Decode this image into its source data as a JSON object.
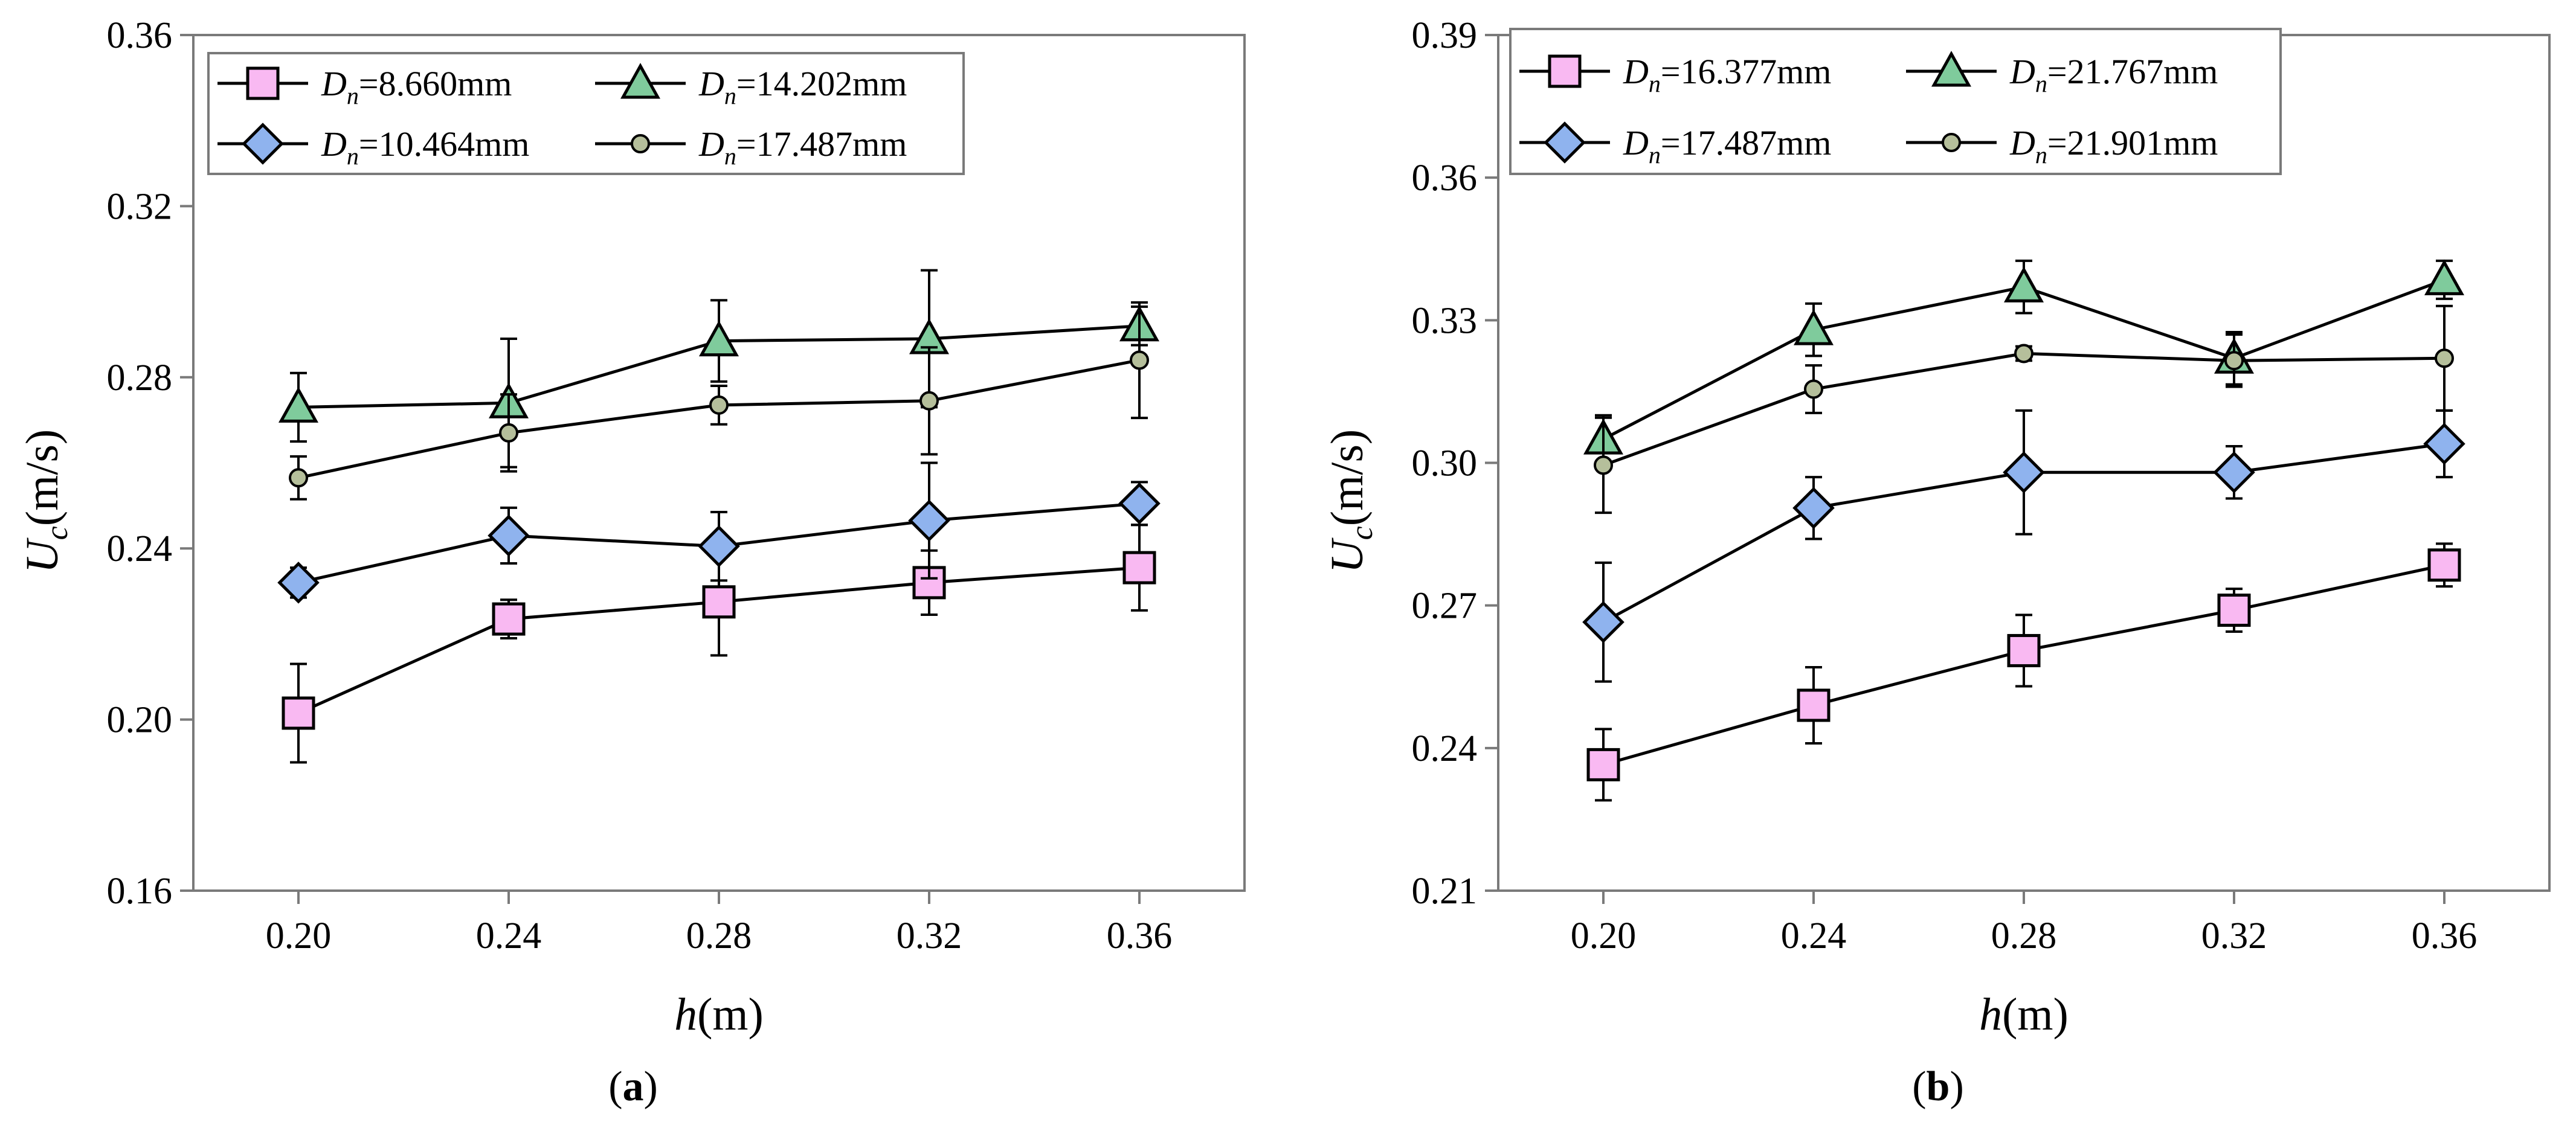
{
  "chart_data": [
    {
      "type": "line",
      "panel_label": {
        "open": "(",
        "letter": "a",
        "close": ")"
      },
      "xlabel": {
        "var": "h",
        "unit": "(m)"
      },
      "ylabel": {
        "var": "U",
        "sub": "c",
        "unit": "(m/s)"
      },
      "xlim": [
        0.18,
        0.38
      ],
      "ylim": [
        0.16,
        0.36
      ],
      "x_ticks": [
        0.2,
        0.24,
        0.28,
        0.32,
        0.36
      ],
      "x_tick_labels": [
        "0.20",
        "0.24",
        "0.28",
        "0.32",
        "0.36"
      ],
      "y_ticks": [
        0.16,
        0.2,
        0.24,
        0.28,
        0.32,
        0.36
      ],
      "y_tick_labels": [
        "0.16",
        "0.20",
        "0.24",
        "0.28",
        "0.32",
        "0.36"
      ],
      "legend_position": "top-left",
      "x": [
        0.2,
        0.24,
        0.28,
        0.32,
        0.36
      ],
      "series": [
        {
          "name": "Dn=8.660mm",
          "var": "D",
          "sub": "n",
          "value": "=8.660mm",
          "marker": "square",
          "color": "#F9B9F2",
          "values": [
            0.2015,
            0.2235,
            0.2275,
            0.232,
            0.2355
          ],
          "err": [
            0.0115,
            0.0045,
            0.0125,
            0.0075,
            0.01
          ]
        },
        {
          "name": "Dn=10.464mm",
          "var": "D",
          "sub": "n",
          "value": "=10.464mm",
          "marker": "diamond",
          "color": "#8FB3EE",
          "values": [
            0.232,
            0.243,
            0.2405,
            0.2465,
            0.2505
          ],
          "err": [
            0.0035,
            0.0065,
            0.008,
            0.0135,
            0.005
          ]
        },
        {
          "name": "Dn=14.202mm",
          "var": "D",
          "sub": "n",
          "value": "=14.202mm",
          "marker": "triangle",
          "color": "#7FCB9C",
          "values": [
            0.273,
            0.274,
            0.2885,
            0.289,
            0.292
          ],
          "err": [
            0.008,
            0.015,
            0.0095,
            0.016,
            0.0045
          ]
        },
        {
          "name": "Dn=17.487mm",
          "var": "D",
          "sub": "n",
          "value": "=17.487mm",
          "marker": "circle",
          "color": "#B5BF9B",
          "values": [
            0.2565,
            0.267,
            0.2735,
            0.2745,
            0.284
          ],
          "err": [
            0.005,
            0.009,
            0.0045,
            0.0125,
            0.0135
          ]
        }
      ]
    },
    {
      "type": "line",
      "panel_label": {
        "open": "(",
        "letter": "b",
        "close": ")"
      },
      "xlabel": {
        "var": "h",
        "unit": "(m)"
      },
      "ylabel": {
        "var": "U",
        "sub": "c",
        "unit": "(m/s)"
      },
      "xlim": [
        0.18,
        0.38
      ],
      "ylim": [
        0.21,
        0.39
      ],
      "x_ticks": [
        0.2,
        0.24,
        0.28,
        0.32,
        0.36
      ],
      "x_tick_labels": [
        "0.20",
        "0.24",
        "0.28",
        "0.32",
        "0.36"
      ],
      "y_ticks": [
        0.21,
        0.24,
        0.27,
        0.3,
        0.33,
        0.36,
        0.39
      ],
      "y_tick_labels": [
        "0.21",
        "0.24",
        "0.27",
        "0.30",
        "0.33",
        "0.36",
        "0.39"
      ],
      "legend_position": "top-left",
      "x": [
        0.2,
        0.24,
        0.28,
        0.32,
        0.36
      ],
      "series": [
        {
          "name": "Dn=16.377mm",
          "var": "D",
          "sub": "n",
          "value": "=16.377mm",
          "marker": "square",
          "color": "#F9B9F2",
          "values": [
            0.2365,
            0.249,
            0.2605,
            0.269,
            0.2785
          ],
          "err": [
            0.0075,
            0.008,
            0.0075,
            0.0045,
            0.0045
          ]
        },
        {
          "name": "Dn=17.487mm",
          "var": "D",
          "sub": "n",
          "value": "=17.487mm",
          "marker": "diamond",
          "color": "#8FB3EE",
          "values": [
            0.2665,
            0.2905,
            0.298,
            0.298,
            0.304
          ],
          "err": [
            0.0125,
            0.0065,
            0.013,
            0.0055,
            0.007
          ]
        },
        {
          "name": "Dn=21.767mm",
          "var": "D",
          "sub": "n",
          "value": "=21.767mm",
          "marker": "triangle",
          "color": "#7FCB9C",
          "values": [
            0.305,
            0.328,
            0.337,
            0.322,
            0.3385
          ],
          "err": [
            0.005,
            0.0055,
            0.0055,
            0.0055,
            0.004
          ]
        },
        {
          "name": "Dn=21.901mm",
          "var": "D",
          "sub": "n",
          "value": "=21.901mm",
          "marker": "circle",
          "color": "#B5BF9B",
          "values": [
            0.2995,
            0.3155,
            0.323,
            0.3215,
            0.322
          ],
          "err": [
            0.01,
            0.005,
            0.0015,
            0.0055,
            0.011
          ]
        }
      ]
    }
  ]
}
